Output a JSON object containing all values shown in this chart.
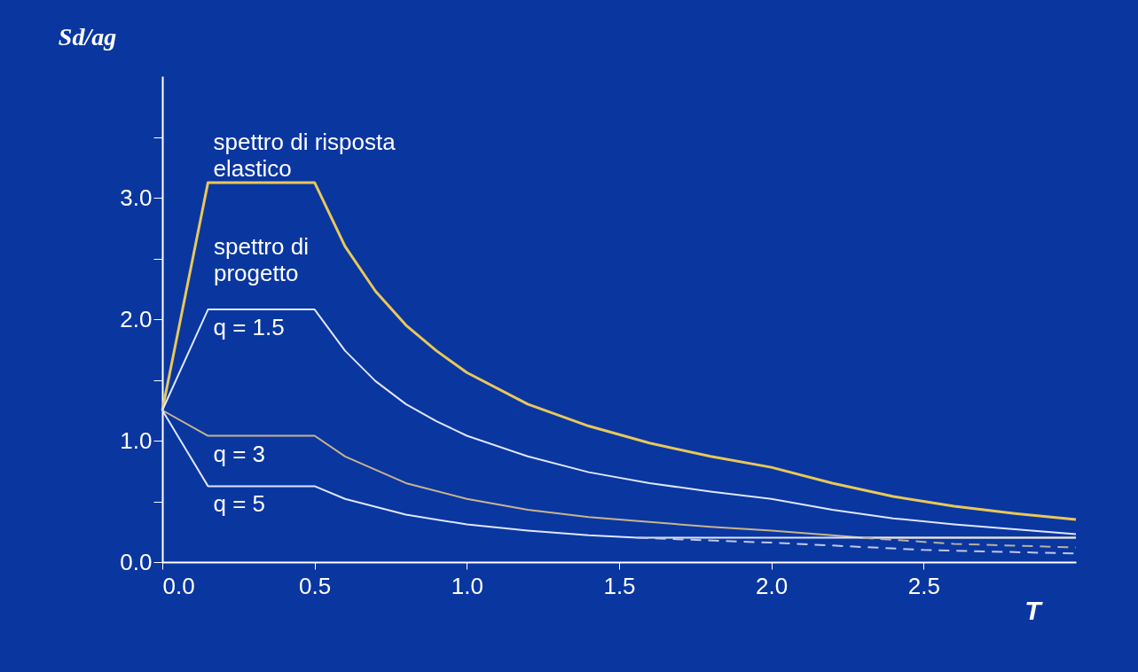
{
  "chart_data": {
    "type": "line",
    "xlabel": "T",
    "ylabel": "Sd/ag",
    "xlim": [
      0,
      3
    ],
    "ylim": [
      0,
      4
    ],
    "xticks": [
      {
        "value": 0,
        "label": "0.0"
      },
      {
        "value": 0.5,
        "label": "0.5"
      },
      {
        "value": 1,
        "label": "1.0"
      },
      {
        "value": 1.5,
        "label": "1.5"
      },
      {
        "value": 2,
        "label": "2.0"
      },
      {
        "value": 2.5,
        "label": "2.5"
      }
    ],
    "yticks": [
      {
        "value": 0,
        "label": "0.0"
      },
      {
        "value": 0.5,
        "label": null
      },
      {
        "value": 1,
        "label": "1.0"
      },
      {
        "value": 1.5,
        "label": null
      },
      {
        "value": 2,
        "label": "2.0"
      },
      {
        "value": 2.5,
        "label": null
      },
      {
        "value": 3,
        "label": "3.0"
      },
      {
        "value": 3.5,
        "label": null
      }
    ],
    "grid": false,
    "marker": "none",
    "series": [
      {
        "name": "spettro di risposta\nelastico",
        "color": "#e8c85a",
        "line_style": "solid",
        "x": [
          0,
          0.15,
          0.5,
          0.6,
          0.7,
          0.8,
          0.9,
          1.0,
          1.2,
          1.4,
          1.6,
          1.8,
          2.0,
          2.2,
          2.4,
          2.6,
          2.8,
          3.0
        ],
        "values": [
          1.25,
          3.125,
          3.125,
          2.6,
          2.23,
          1.95,
          1.74,
          1.56,
          1.3,
          1.12,
          0.98,
          0.87,
          0.78,
          0.65,
          0.54,
          0.46,
          0.4,
          0.35
        ]
      },
      {
        "name": "q = 1.5",
        "color": "#dfe6ff",
        "line_style": "solid",
        "x": [
          0,
          0.15,
          0.5,
          0.6,
          0.7,
          0.8,
          0.9,
          1.0,
          1.2,
          1.4,
          1.6,
          1.8,
          2.0,
          2.2,
          2.4,
          2.6,
          2.8,
          3.0
        ],
        "values": [
          1.25,
          2.08,
          2.08,
          1.74,
          1.49,
          1.3,
          1.16,
          1.04,
          0.87,
          0.74,
          0.65,
          0.58,
          0.52,
          0.43,
          0.36,
          0.31,
          0.27,
          0.23
        ]
      },
      {
        "name": "q = 3",
        "color": "#c8b48c",
        "line_style": "solid",
        "x": [
          0,
          0.15,
          0.5,
          0.6,
          0.8,
          1.0,
          1.2,
          1.4,
          1.6,
          1.8,
          2.0,
          2.2,
          2.3,
          3.0
        ],
        "values": [
          1.25,
          1.04,
          1.04,
          0.87,
          0.65,
          0.52,
          0.43,
          0.37,
          0.33,
          0.29,
          0.26,
          0.22,
          0.2,
          0.2
        ]
      },
      {
        "name": "q = 5",
        "color": "#dfe6ff",
        "line_style": "solid",
        "x": [
          0,
          0.15,
          0.5,
          0.6,
          0.8,
          1.0,
          1.2,
          1.4,
          1.56,
          3.0
        ],
        "values": [
          1.25,
          0.625,
          0.625,
          0.52,
          0.39,
          0.31,
          0.26,
          0.22,
          0.2,
          0.2
        ]
      },
      {
        "color": "#b8b0a0",
        "line_style": "dashed",
        "x": [
          2.3,
          2.6,
          3.0
        ],
        "values": [
          0.2,
          0.15,
          0.12
        ]
      },
      {
        "color": "#c0c8e8",
        "line_style": "dashed",
        "x": [
          1.56,
          2.0,
          2.5,
          3.0
        ],
        "values": [
          0.2,
          0.16,
          0.1,
          0.07
        ]
      }
    ],
    "annotations": [
      "spettro di\nprogetto"
    ]
  }
}
